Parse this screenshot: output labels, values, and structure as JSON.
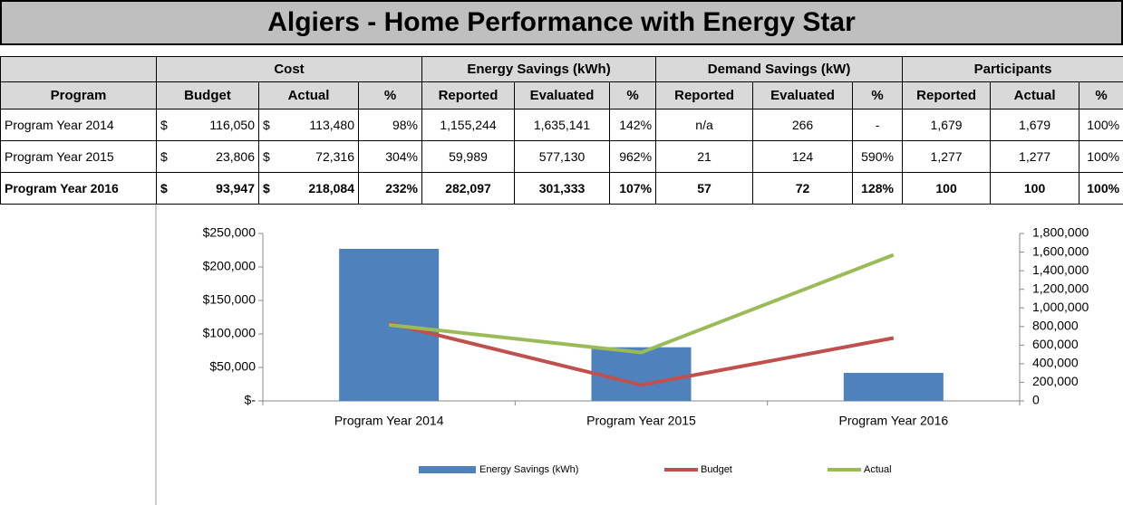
{
  "header": {
    "title": "Algiers - Home Performance with Energy Star"
  },
  "table": {
    "groups": [
      "Cost",
      "Energy Savings (kWh)",
      "Demand Savings (kW)",
      "Participants"
    ],
    "columns": [
      "Program",
      "Budget",
      "Actual",
      "%",
      "Reported",
      "Evaluated",
      "%",
      "Reported",
      "Evaluated",
      "%",
      "Reported",
      "Actual",
      "%"
    ],
    "rows": [
      [
        "Program Year 2014",
        "$",
        "116,050",
        "$",
        "113,480",
        "98%",
        "1,155,244",
        "1,635,141",
        "142%",
        "n/a",
        "266",
        "-",
        "1,679",
        "1,679",
        "100%"
      ],
      [
        "Program Year 2015",
        "$",
        "23,806",
        "$",
        "72,316",
        "304%",
        "59,989",
        "577,130",
        "962%",
        "21",
        "124",
        "590%",
        "1,277",
        "1,277",
        "100%"
      ],
      [
        "Program Year 2016",
        "$",
        "93,947",
        "$",
        "218,084",
        "232%",
        "282,097",
        "301,333",
        "107%",
        "57",
        "72",
        "128%",
        "100",
        "100",
        "100%"
      ]
    ]
  },
  "chart_data": {
    "type": "combo",
    "categories": [
      "Program Year 2014",
      "Program Year 2015",
      "Program Year 2016"
    ],
    "series": [
      {
        "name": "Energy Savings (kWh)",
        "type": "bar",
        "axis": "y2",
        "color": "#4f81bd",
        "values": [
          1635141,
          577130,
          301333
        ]
      },
      {
        "name": "Budget",
        "type": "line",
        "axis": "y",
        "color": "#c0504d",
        "values": [
          116050,
          23806,
          93947
        ]
      },
      {
        "name": "Actual",
        "type": "line",
        "axis": "y",
        "color": "#9bbb59",
        "values": [
          113480,
          72316,
          218084
        ]
      }
    ],
    "ylim": [
      0,
      250000
    ],
    "yticks": [
      {
        "value": 0,
        "label": "$-"
      },
      {
        "value": 50000,
        "label": "$50,000"
      },
      {
        "value": 100000,
        "label": "$100,000"
      },
      {
        "value": 150000,
        "label": "$150,000"
      },
      {
        "value": 200000,
        "label": "$200,000"
      },
      {
        "value": 250000,
        "label": "$250,000"
      }
    ],
    "y2lim": [
      0,
      1800000
    ],
    "y2ticks": [
      0,
      {
        "value": 200000,
        "label": "200,000"
      },
      {
        "value": 400000,
        "label": "400,000"
      },
      {
        "value": 600000,
        "label": "600,000"
      },
      {
        "value": 800000,
        "label": "800,000"
      },
      {
        "value": 1000000,
        "label": "1,000,000"
      },
      {
        "value": 1200000,
        "label": "1,200,000"
      },
      {
        "value": 1400000,
        "label": "1,400,000"
      },
      {
        "value": 1600000,
        "label": "1,600,000"
      },
      {
        "value": 1800000,
        "label": "1,800,000"
      }
    ],
    "legend": "bottom"
  }
}
